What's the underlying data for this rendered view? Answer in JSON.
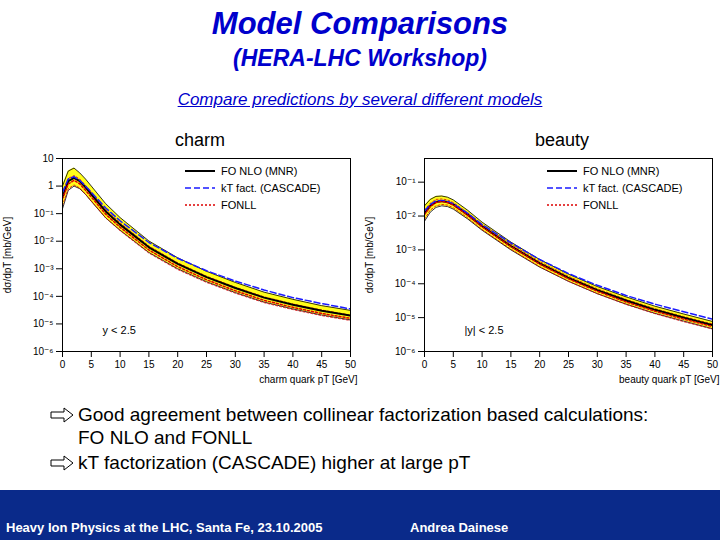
{
  "slide": {
    "title": "Model Comparisons",
    "subtitle": "(HERA-LHC Workshop)",
    "intro": "Compare predictions by several different models",
    "bullets": [
      "Good agreement between collinear factorization based calculations: FO NLO and FONLL",
      "kT factorization (CASCADE) higher at large pT"
    ],
    "footer_left": "Heavy Ion Physics at the LHC, Santa Fe, 23.10.2005",
    "footer_right": "Andrea Dainese"
  },
  "chart_data": [
    {
      "type": "line",
      "title": "charm",
      "log": "y",
      "grid": false,
      "legend": "top-right",
      "x_label": "charm quark pT [GeV]",
      "y_label": "dσ/dpT [mb/GeV]",
      "annotations": [
        "y < 2.5"
      ],
      "xlim": [
        0,
        50
      ],
      "xticks": [
        0,
        5,
        10,
        15,
        20,
        25,
        30,
        35,
        40,
        45,
        50
      ],
      "ylim": [
        1e-06,
        10
      ],
      "yticks": [
        {
          "value": 1e-06,
          "label": "10⁻⁶"
        },
        {
          "value": 1e-05,
          "label": "10⁻⁵"
        },
        {
          "value": 0.0001,
          "label": "10⁻⁴"
        },
        {
          "value": 0.001,
          "label": "10⁻³"
        },
        {
          "value": 0.01,
          "label": "10⁻²"
        },
        {
          "value": 0.1,
          "label": "10⁻¹"
        },
        1,
        10
      ],
      "x": [
        0,
        1,
        2,
        3,
        4,
        5,
        7.5,
        10,
        15,
        20,
        25,
        30,
        35,
        40,
        45,
        50
      ],
      "series": [
        {
          "name": "FO NLO (MNR)",
          "color": "#000000",
          "line_style": "solid",
          "values": [
            0.4,
            1.5,
            2.0,
            1.5,
            0.9,
            0.5,
            0.12,
            0.04,
            0.006,
            0.0015,
            0.0005,
            0.0002,
            9e-05,
            5e-05,
            3e-05,
            2e-05
          ],
          "lower": [
            0.15,
            0.7,
            1.0,
            0.8,
            0.5,
            0.28,
            0.07,
            0.025,
            0.0039,
            0.001,
            0.00034,
            0.000137,
            6.2e-05,
            3.5e-05,
            2.1e-05,
            1.4e-05
          ],
          "upper": [
            1.0,
            3.5,
            4.5,
            3.0,
            1.8,
            1.0,
            0.23,
            0.072,
            0.0102,
            0.0025,
            0.00081,
            0.00032,
            0.000142,
            7.8e-05,
            4.6e-05,
            3.1e-05
          ]
        },
        {
          "name": "kT fact. (CASCADE)",
          "color": "#1a1aff",
          "line_style": "dashed",
          "values": [
            0.6,
            1.8,
            2.2,
            1.6,
            1.0,
            0.6,
            0.16,
            0.055,
            0.009,
            0.0024,
            0.00085,
            0.00036,
            0.00017,
            9e-05,
            5.5e-05,
            3.5e-05
          ]
        },
        {
          "name": "FONLL",
          "color": "#dd0000",
          "line_style": "dotted",
          "values": [
            0.35,
            1.2,
            1.6,
            1.2,
            0.7,
            0.4,
            0.095,
            0.032,
            0.0048,
            0.0012,
            0.0004,
            0.00016,
            7.2e-05,
            4e-05,
            2.4e-05,
            1.6e-05
          ],
          "lower": [
            0.2,
            0.8,
            1.1,
            0.85,
            0.5,
            0.29,
            0.07,
            0.024,
            0.0037,
            0.00094,
            0.00032,
            0.00013,
            5.9e-05,
            3.3e-05,
            2e-05,
            1.33e-05
          ],
          "upper": [
            0.6,
            1.9,
            2.4,
            1.8,
            1.05,
            0.6,
            0.14,
            0.046,
            0.0067,
            0.00165,
            0.00054,
            0.000215,
            9.6e-05,
            5.3e-05,
            3.2e-05,
            2.1e-05
          ]
        }
      ]
    },
    {
      "type": "line",
      "title": "beauty",
      "log": "y",
      "grid": false,
      "legend": "top-right",
      "x_label": "beauty quark pT [GeV]",
      "y_label": "dσ/dpT [mb/GeV]",
      "annotations": [
        "|y| < 2.5"
      ],
      "xlim": [
        0,
        50
      ],
      "xticks": [
        0,
        5,
        10,
        15,
        20,
        25,
        30,
        35,
        40,
        45,
        50
      ],
      "ylim": [
        1e-06,
        0.5
      ],
      "yticks": [
        {
          "value": 1e-06,
          "label": "10⁻⁶"
        },
        {
          "value": 1e-05,
          "label": "10⁻⁵"
        },
        {
          "value": 0.0001,
          "label": "10⁻⁴"
        },
        {
          "value": 0.001,
          "label": "10⁻³"
        },
        {
          "value": 0.01,
          "label": "10⁻²"
        },
        {
          "value": 0.1,
          "label": "10⁻¹"
        }
      ],
      "x": [
        0,
        1,
        2,
        3,
        4,
        5,
        7.5,
        10,
        15,
        20,
        25,
        30,
        35,
        40,
        45,
        50
      ],
      "series": [
        {
          "name": "FO NLO (MNR)",
          "color": "#000000",
          "line_style": "solid",
          "values": [
            0.012,
            0.02,
            0.026,
            0.028,
            0.026,
            0.022,
            0.011,
            0.005,
            0.0013,
            0.0004,
            0.00015,
            6.5e-05,
            3.2e-05,
            1.7e-05,
            1e-05,
            6e-06
          ],
          "lower": [
            0.007,
            0.013,
            0.018,
            0.02,
            0.019,
            0.016,
            0.0082,
            0.0038,
            0.001,
            0.00031,
            0.000118,
            5.1e-05,
            2.5e-05,
            1.34e-05,
            7.9e-06,
            4.7e-06
          ],
          "upper": [
            0.02,
            0.031,
            0.038,
            0.039,
            0.036,
            0.03,
            0.0148,
            0.0066,
            0.0017,
            0.00052,
            0.000192,
            8.3e-05,
            4.1e-05,
            2.18e-05,
            1.28e-05,
            7.7e-06
          ]
        },
        {
          "name": "kT fact. (CASCADE)",
          "color": "#1a1aff",
          "line_style": "dashed",
          "values": [
            0.014,
            0.022,
            0.028,
            0.029,
            0.027,
            0.023,
            0.012,
            0.0056,
            0.0016,
            0.00052,
            0.0002,
            9e-05,
            4.5e-05,
            2.5e-05,
            1.5e-05,
            9e-06
          ]
        },
        {
          "name": "FONLL",
          "color": "#dd0000",
          "line_style": "dotted",
          "values": [
            0.011,
            0.019,
            0.025,
            0.027,
            0.025,
            0.021,
            0.0105,
            0.0048,
            0.00125,
            0.00038,
            0.00014,
            6e-05,
            2.9e-05,
            1.55e-05,
            9e-06,
            5.5e-06
          ],
          "lower": [
            0.008,
            0.015,
            0.02,
            0.022,
            0.021,
            0.0175,
            0.0088,
            0.004,
            0.00105,
            0.00032,
            0.000118,
            5.1e-05,
            2.45e-05,
            1.31e-05,
            7.6e-06,
            4.6e-06
          ],
          "upper": [
            0.015,
            0.024,
            0.031,
            0.032,
            0.03,
            0.025,
            0.0125,
            0.0057,
            0.00148,
            0.00045,
            0.000166,
            7.1e-05,
            3.45e-05,
            1.84e-05,
            1.07e-05,
            6.5e-06
          ]
        }
      ]
    }
  ]
}
